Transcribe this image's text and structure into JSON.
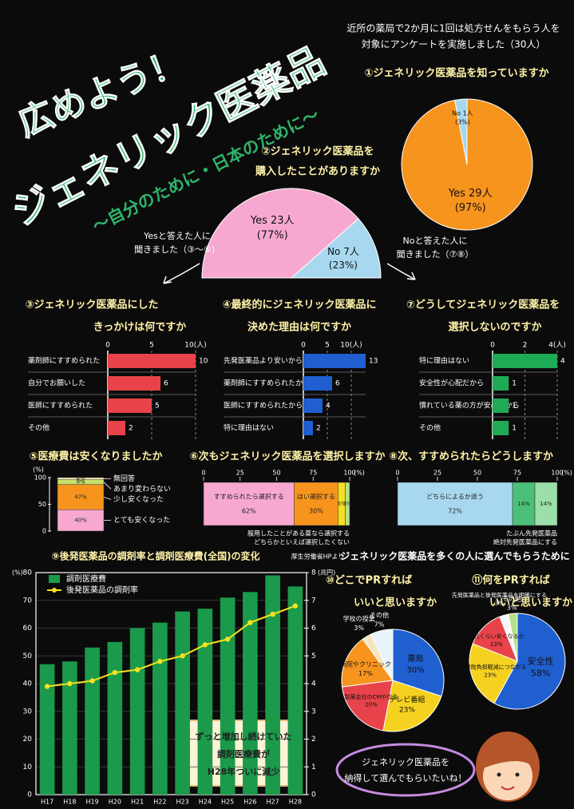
{
  "header": {
    "title_1": "広めよう！",
    "title_2": "ジェネリック医薬品",
    "subtitle": "〜自分のために・日本のために〜",
    "intro": [
      "近所の薬局で2か月に1回は処方せんをもらう人を",
      "対象にアンケートを実施しました（30人）"
    ],
    "section": "ジェネリック医薬品を多くの人に選んでもらうために",
    "bubble": [
      "ジェネリック医薬品を",
      "納得して選んでもらいたいね！"
    ]
  },
  "chart_data": [
    {
      "type": "pie",
      "title": [
        "①ジェネリック医薬品を知っていますか"
      ],
      "categories": [
        "Yes 29人",
        "No 1人"
      ],
      "values": [
        97,
        3
      ],
      "value_labels": [
        "(97%)",
        "(3%)"
      ],
      "colors": [
        "#f7941d",
        "#a8d8ef"
      ]
    },
    {
      "type": "half-pie",
      "title": [
        "②ジェネリック医薬品を",
        "購入したことがありますか"
      ],
      "categories": [
        "Yes 23人",
        "No 7人"
      ],
      "values": [
        77,
        23
      ],
      "value_labels": [
        "(77%)",
        "(23%)"
      ],
      "colors": [
        "#f7a8d0",
        "#a8d8ef"
      ],
      "notes": [
        [
          "Yesと答えた人に",
          "聞きました（③〜⑥）"
        ],
        [
          "Noと答えた人に",
          "聞きました（⑦⑧）"
        ]
      ]
    },
    {
      "type": "hbar",
      "title": [
        "③ジェネリック医薬品にした",
        "きっかけは何ですか"
      ],
      "categories": [
        "薬剤師にすすめられた",
        "自分でお願いした",
        "医師にすすめられた",
        "その他"
      ],
      "values": [
        10,
        6,
        5,
        2
      ],
      "xlim": [
        0,
        10
      ],
      "xticks": [
        0,
        5,
        {
          "value": 10,
          "label": "10(人)"
        }
      ],
      "color": "#e8434a"
    },
    {
      "type": "hbar",
      "title": [
        "④最終的にジェネリック医薬品に",
        "決めた理由は何ですか"
      ],
      "categories": [
        "先発医薬品より安いから",
        "薬剤師にすすめられたから",
        "医師にすすめられたから",
        "特に理由はない"
      ],
      "values": [
        13,
        6,
        4,
        2
      ],
      "xlim": [
        0,
        13
      ],
      "xticks": [
        0,
        5,
        {
          "value": 10,
          "label": "10(人)"
        }
      ],
      "color": "#1f5fd0"
    },
    {
      "type": "hbar",
      "title": [
        "⑦どうしてジェネリック医薬品を",
        "選択しないのですか"
      ],
      "categories": [
        "特に理由はない",
        "安全性が心配だから",
        "慣れている薬の方が安心だから",
        "その他"
      ],
      "values": [
        4,
        1,
        1,
        1
      ],
      "xlim": [
        0,
        4
      ],
      "xticks": [
        0,
        2,
        {
          "value": 4,
          "label": "4(人)"
        }
      ],
      "color": "#1faa55"
    },
    {
      "type": "stack-v",
      "title": [
        "⑤医療費は安くなりましたか"
      ],
      "categories": [
        "とても安くなった",
        "少し安くなった",
        "あまり変わらない",
        "無回答"
      ],
      "values": [
        40,
        47,
        9,
        4
      ],
      "value_labels": [
        "40%",
        "47%",
        "9%",
        "4%"
      ],
      "colors": [
        "#f7a8d0",
        "#f7941d",
        "#c8e06a",
        "#fdf0b0"
      ],
      "ylim": [
        0,
        100
      ],
      "yticks": [
        0,
        50,
        100
      ],
      "y_label": "(%)"
    },
    {
      "type": "stack-h",
      "title": [
        "⑥次もジェネリック医薬品を選択しますか"
      ],
      "categories": [
        "すすめられたら選択する",
        "はい選択する",
        "服用したことがある薬なら選択する",
        "どちらかといえば選択したくない"
      ],
      "values": [
        62,
        30,
        5,
        3
      ],
      "value_labels": [
        "62%",
        "30%",
        "5%",
        "3%"
      ],
      "colors": [
        "#f7a8d0",
        "#f7941d",
        "#f5e11f",
        "#b5e08a"
      ],
      "xlim": [
        0,
        100
      ],
      "xticks": [
        0,
        25,
        50,
        75,
        100
      ],
      "x_label": "(%)"
    },
    {
      "type": "stack-h",
      "title": [
        "⑧次、すすめられたらどうしますか"
      ],
      "categories": [
        "どちらによるか迷う",
        "たぶん先発医薬品",
        "絶対先発医薬品にする"
      ],
      "values": [
        72,
        14,
        14
      ],
      "value_labels": [
        "72%",
        "14%",
        "14%"
      ],
      "colors": [
        "#a8d8ef",
        "#4cc07a",
        "#9be0a8"
      ],
      "xlim": [
        0,
        100
      ],
      "xticks": [
        0,
        25,
        50,
        75,
        100
      ],
      "x_label": "(%)"
    },
    {
      "type": "combo",
      "title": [
        "⑨後発医薬品の調剤率と調剤医療費(全国)の変化"
      ],
      "source": "厚生労働省HPより",
      "categories": [
        "H17",
        "H18",
        "H19",
        "H20",
        "H21",
        "H22",
        "H23",
        "H24",
        "H25",
        "H26",
        "H27",
        "H28"
      ],
      "series": [
        {
          "name": "調剤医療費",
          "type": "bar",
          "axis": "y2",
          "color": "#1a9a4a",
          "values": [
            4.7,
            4.8,
            5.3,
            5.5,
            6.0,
            6.2,
            6.6,
            6.7,
            7.1,
            7.3,
            7.9,
            7.5
          ]
        },
        {
          "name": "後発医薬品の調剤率",
          "type": "line",
          "color": "#f5e11f",
          "values": [
            39,
            40,
            41,
            44,
            45,
            48,
            50,
            54,
            56,
            62,
            65,
            68
          ]
        }
      ],
      "ylim": [
        0,
        80
      ],
      "yticks": [
        0,
        10,
        20,
        30,
        40,
        50,
        60,
        70,
        80
      ],
      "y_label": "(%)",
      "y2lim": [
        0,
        8
      ],
      "y2ticks": [
        0,
        1,
        2,
        3,
        4,
        5,
        6,
        7,
        8
      ],
      "y2_label": "(兆円)",
      "annotation": [
        "ずっと増加し続けていた",
        "調剤医療費が",
        "H28年ついに減少"
      ]
    },
    {
      "type": "pie",
      "title": [
        "⑩どこでPRすれば",
        "いいと思いますか"
      ],
      "categories": [
        "薬局",
        "テレビ番組",
        "製薬会社のCMや広告",
        "病院やクリニック",
        "学校の授業",
        "その他"
      ],
      "values": [
        30,
        23,
        20,
        17,
        3,
        7
      ],
      "value_labels": [
        "30%",
        "23%",
        "20%",
        "17%",
        "3%",
        "7%"
      ],
      "colors": [
        "#1f5fd0",
        "#f5d21f",
        "#e8434a",
        "#f7941d",
        "#f3e6c0",
        "#e8f4fa"
      ]
    },
    {
      "type": "pie",
      "title": [
        "⑪何をPRすれば",
        "いいと思いますか"
      ],
      "categories": [
        "安全性",
        "国の財政負担軽減につながる",
        "どれくらい安くなるか",
        "先発医薬品と後発医薬品を明確にする",
        "その他"
      ],
      "values": [
        58,
        23,
        13,
        3,
        3
      ],
      "value_labels": [
        "58%",
        "23%",
        "13%",
        "3%",
        "3%"
      ],
      "colors": [
        "#1f5fd0",
        "#f5d21f",
        "#e8434a",
        "#f7f7f7",
        "#b5e08a"
      ]
    }
  ]
}
